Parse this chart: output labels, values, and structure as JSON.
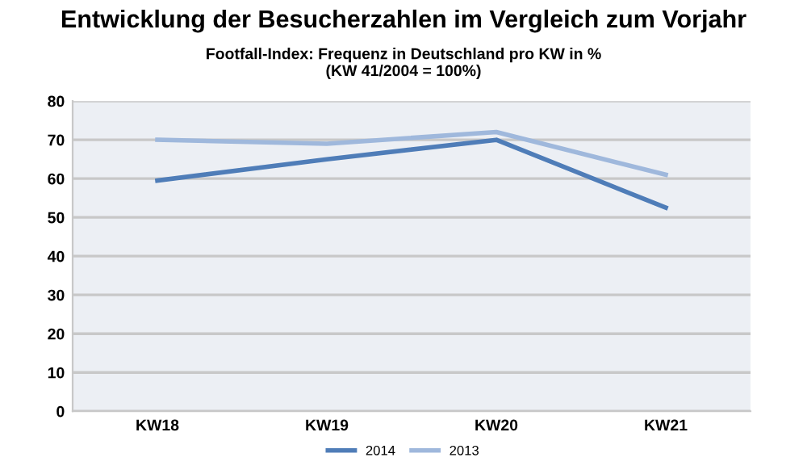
{
  "chart_data": {
    "type": "line",
    "title": "Entwicklung der Besucherzahlen im Vergleich zum Vorjahr",
    "subtitle": "Footfall-Index: Frequenz in Deutschland pro KW in %\n(KW 41/2004 = 100%)",
    "categories": [
      "KW18",
      "KW19",
      "KW20",
      "KW21"
    ],
    "series": [
      {
        "name": "2014",
        "color": "#4f7db8",
        "values": [
          59.5,
          65,
          70,
          52.5
        ]
      },
      {
        "name": "2013",
        "color": "#9fb8dc",
        "values": [
          70,
          69,
          72,
          61
        ]
      }
    ],
    "ylim": [
      0,
      80
    ],
    "yticks": [
      0,
      10,
      20,
      30,
      40,
      50,
      60,
      70,
      80
    ],
    "grid": "y",
    "legend": "bottom",
    "marker": "none",
    "line_style": "solid"
  }
}
